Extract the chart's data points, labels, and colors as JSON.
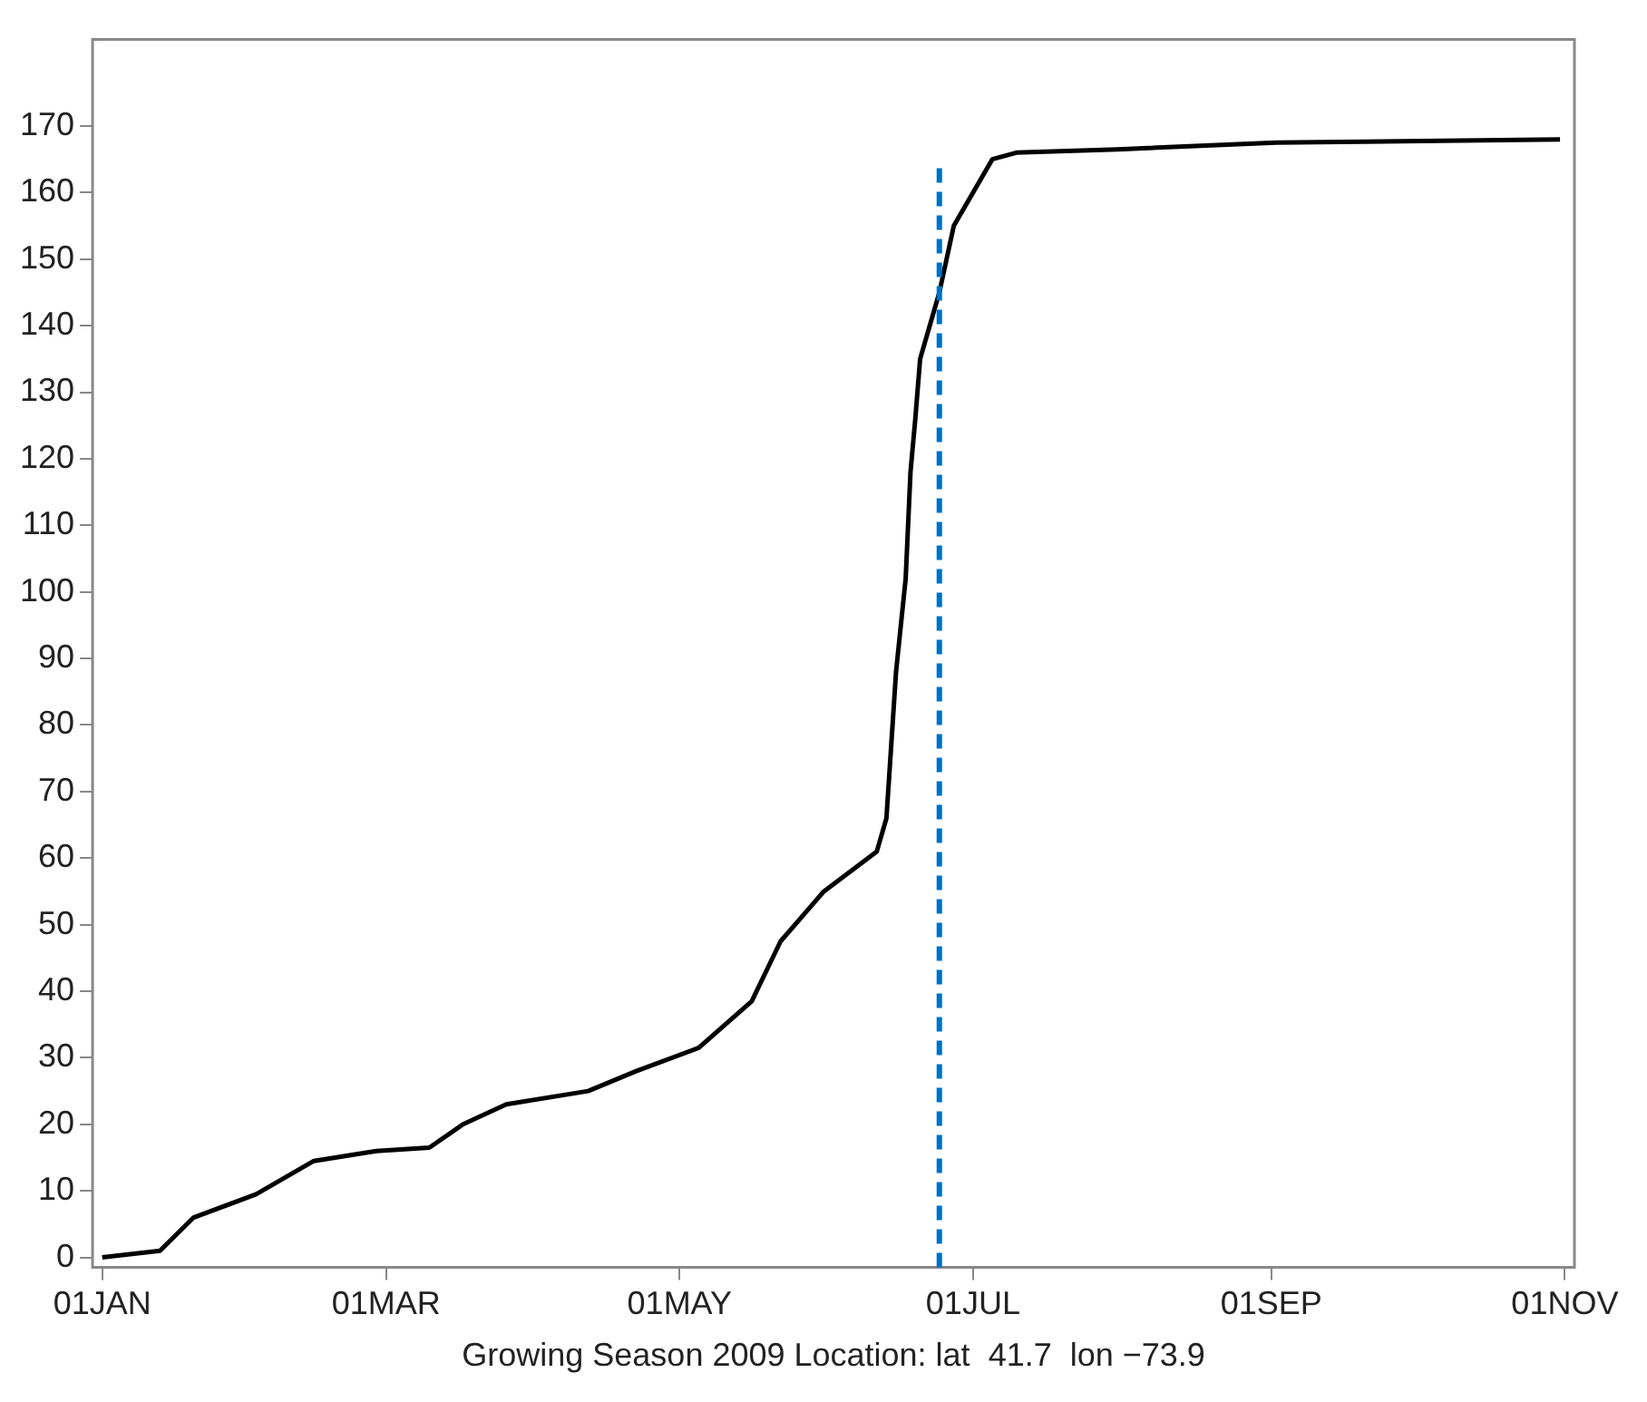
{
  "chart_data": {
    "type": "line",
    "xlabel": "Growing Season 2009 Location: lat  41.7  lon −73.9",
    "x": [
      "2009-01-01",
      "2009-01-13",
      "2009-01-20",
      "2009-02-02",
      "2009-02-14",
      "2009-02-27",
      "2009-03-10",
      "2009-03-17",
      "2009-03-26",
      "2009-04-12",
      "2009-04-22",
      "2009-05-05",
      "2009-05-16",
      "2009-05-22",
      "2009-05-31",
      "2009-06-11",
      "2009-06-13",
      "2009-06-14",
      "2009-06-15",
      "2009-06-17",
      "2009-06-18",
      "2009-06-19",
      "2009-06-20",
      "2009-06-24",
      "2009-06-27",
      "2009-07-05",
      "2009-07-10",
      "2009-07-31",
      "2009-09-02",
      "2009-10-31"
    ],
    "series": [
      {
        "color": "#000000",
        "values": [
          0,
          1,
          6,
          9.5,
          14.5,
          16,
          16.5,
          20,
          23,
          25,
          28,
          31.5,
          38.5,
          47.5,
          55,
          61,
          66,
          77,
          88,
          102,
          118,
          126,
          135,
          145,
          155,
          165,
          166,
          166.5,
          167.5,
          168
        ]
      }
    ],
    "xlim": [
      "2008-12-30",
      "2009-11-03"
    ],
    "ylim": [
      -1.5,
      183
    ],
    "xticks": [
      {
        "value": "2009-01-01",
        "label": "01JAN"
      },
      {
        "value": "2009-03-01",
        "label": "01MAR"
      },
      {
        "value": "2009-05-01",
        "label": "01MAY"
      },
      {
        "value": "2009-07-01",
        "label": "01JUL"
      },
      {
        "value": "2009-09-01",
        "label": "01SEP"
      },
      {
        "value": "2009-11-01",
        "label": "01NOV"
      }
    ],
    "yticks": [
      0,
      10,
      20,
      30,
      40,
      50,
      60,
      70,
      80,
      90,
      100,
      110,
      120,
      130,
      140,
      150,
      160,
      170
    ],
    "ref_lines": [
      {
        "axis": "x",
        "value": "2009-06-24",
        "color": "#0070c0",
        "line_style": "dashed"
      }
    ],
    "marker": "none",
    "line_style": "solid"
  }
}
